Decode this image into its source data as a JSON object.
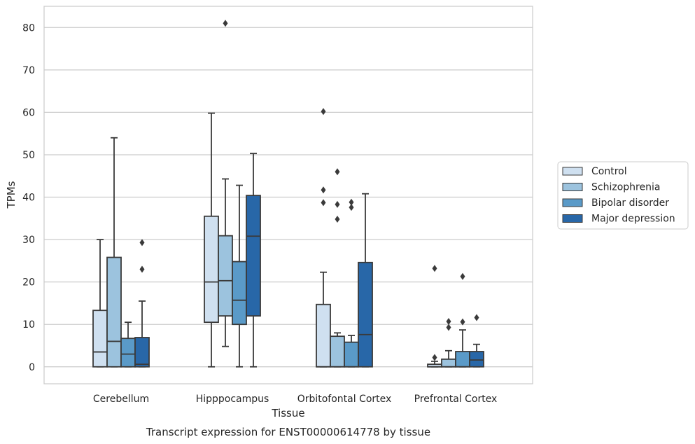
{
  "caption": "Transcript expression for ENST00000614778 by tissue",
  "chart_data": {
    "type": "box",
    "title": "",
    "xlabel": "Tissue",
    "ylabel": "TPMs",
    "ylim": [
      -4,
      85
    ],
    "yticks": [
      0,
      10,
      20,
      30,
      40,
      50,
      60,
      70,
      80
    ],
    "grid": "horizontal",
    "legend_placement": "right",
    "categories": [
      "Cerebellum",
      "Hipppocampus",
      "Orbitofontal Cortex",
      "Prefrontal Cortex"
    ],
    "series": [
      {
        "name": "Control",
        "color": "#cfe0f0",
        "boxes": [
          {
            "whislo": 0,
            "q1": 0,
            "med": 3.5,
            "q3": 13.3,
            "whishi": 30,
            "fliers": []
          },
          {
            "whislo": 0,
            "q1": 10.5,
            "med": 20,
            "q3": 35.5,
            "whishi": 59.8,
            "fliers": []
          },
          {
            "whislo": 0,
            "q1": 0,
            "med": 0,
            "q3": 14.7,
            "whishi": 22.3,
            "fliers": [
              38.7,
              41.7,
              60.2
            ]
          },
          {
            "whislo": 0,
            "q1": 0,
            "med": 0,
            "q3": 0.6,
            "whishi": 1.3,
            "fliers": [
              2.2,
              23.2
            ]
          }
        ]
      },
      {
        "name": "Schizophrenia",
        "color": "#9cc3de",
        "boxes": [
          {
            "whislo": 0,
            "q1": 0,
            "med": 6,
            "q3": 25.8,
            "whishi": 54,
            "fliers": []
          },
          {
            "whislo": 4.8,
            "q1": 12,
            "med": 20.3,
            "q3": 30.9,
            "whishi": 44.3,
            "fliers": [
              81
            ]
          },
          {
            "whislo": 0,
            "q1": 0,
            "med": 0,
            "q3": 7.2,
            "whishi": 8,
            "fliers": [
              34.8,
              38.3,
              46
            ]
          },
          {
            "whislo": 0,
            "q1": 0,
            "med": 0,
            "q3": 1.8,
            "whishi": 3.8,
            "fliers": [
              9.3,
              10.7
            ]
          }
        ]
      },
      {
        "name": "Bipolar disorder",
        "color": "#5a9ac8",
        "boxes": [
          {
            "whislo": 0,
            "q1": 0,
            "med": 3,
            "q3": 6.7,
            "whishi": 10.5,
            "fliers": []
          },
          {
            "whislo": 0,
            "q1": 10,
            "med": 15.7,
            "q3": 24.8,
            "whishi": 42.8,
            "fliers": []
          },
          {
            "whislo": 0,
            "q1": 0,
            "med": 0,
            "q3": 5.8,
            "whishi": 7.4,
            "fliers": [
              37.6,
              38.8
            ]
          },
          {
            "whislo": 0,
            "q1": 0,
            "med": 0,
            "q3": 3.6,
            "whishi": 8.7,
            "fliers": [
              10.6,
              21.3
            ]
          }
        ]
      },
      {
        "name": "Major depression",
        "color": "#2867a8",
        "boxes": [
          {
            "whislo": 0,
            "q1": 0,
            "med": 0.6,
            "q3": 6.9,
            "whishi": 15.5,
            "fliers": [
              23,
              29.3
            ]
          },
          {
            "whislo": 0,
            "q1": 12,
            "med": 30.8,
            "q3": 40.4,
            "whishi": 50.3,
            "fliers": []
          },
          {
            "whislo": 0,
            "q1": 0,
            "med": 7.6,
            "q3": 24.6,
            "whishi": 40.8,
            "fliers": []
          },
          {
            "whislo": 0,
            "q1": 0,
            "med": 1.6,
            "q3": 3.6,
            "whishi": 5.3,
            "fliers": [
              11.6
            ]
          }
        ]
      }
    ]
  }
}
